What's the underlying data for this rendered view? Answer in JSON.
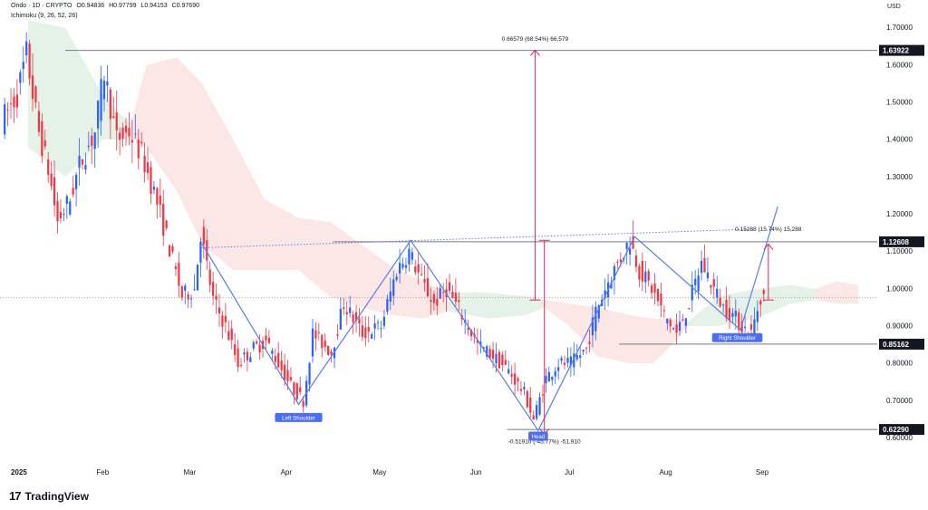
{
  "header": {
    "symbol": "Ondo · 1D · CRYPTO",
    "o_label": "O",
    "o": "0.94836",
    "h_label": "H",
    "h": "0.97799",
    "l_label": "L",
    "l": "0.94153",
    "c_label": "C",
    "c": "0.97690",
    "indicator": "Ichimoku (9, 26, 52, 26)"
  },
  "currency": "USD",
  "brand": "TradingView",
  "colors": {
    "up": "#2962ff",
    "down": "#f23645",
    "pattern": "#5b7cf0",
    "cloud_bear": "#fbe3e3",
    "cloud_bull": "#e1f0e4",
    "measure": "#e0245e"
  },
  "chart_data": {
    "type": "candlestick",
    "title": "Ondo · 1D · CRYPTO",
    "y_axis": {
      "ylim": [
        0.56,
        1.75
      ],
      "ticks": [
        0.6,
        0.7,
        0.8,
        0.9,
        1.0,
        1.1,
        1.2,
        1.3,
        1.4,
        1.5,
        1.6,
        1.7
      ],
      "tick_labels": [
        "0.60000",
        "0.70000",
        "0.80000",
        "0.90000",
        "1.00000",
        "1.10000",
        "1.20000",
        "1.30000",
        "1.40000",
        "1.50000",
        "1.60000",
        "1.70000"
      ],
      "label": "USD"
    },
    "x_axis": {
      "labels": [
        "2025",
        "Feb",
        "Mar",
        "Apr",
        "May",
        "Jun",
        "Jul",
        "Aug",
        "Sep"
      ],
      "label_dates": [
        "2025-01-01",
        "2025-02-01",
        "2025-03-01",
        "2025-04-01",
        "2025-05-01",
        "2025-06-01",
        "2025-07-01",
        "2025-08-01",
        "2025-09-01"
      ],
      "range": [
        "2024-12-30",
        "2025-10-08"
      ]
    },
    "price_levels": [
      {
        "label": "1.63922",
        "value": 1.63922,
        "from": "2025-01-20"
      },
      {
        "label": "1.12608",
        "value": 1.12608,
        "from": "2025-04-16"
      },
      {
        "label": "0.85162",
        "value": 0.85162,
        "from": "2025-07-17"
      },
      {
        "label": "0.62290",
        "value": 0.6229,
        "from": "2025-06-11"
      }
    ],
    "current_price": 0.9769,
    "price_path": [
      [
        "2024-12-31",
        1.45
      ],
      [
        "2025-01-05",
        1.52
      ],
      [
        "2025-01-08",
        1.63
      ],
      [
        "2025-01-12",
        1.42
      ],
      [
        "2025-01-15",
        1.32
      ],
      [
        "2025-01-18",
        1.18
      ],
      [
        "2025-01-22",
        1.24
      ],
      [
        "2025-01-25",
        1.33
      ],
      [
        "2025-01-30",
        1.42
      ],
      [
        "2025-02-02",
        1.58
      ],
      [
        "2025-02-06",
        1.4
      ],
      [
        "2025-02-10",
        1.42
      ],
      [
        "2025-02-14",
        1.36
      ],
      [
        "2025-02-18",
        1.26
      ],
      [
        "2025-02-22",
        1.14
      ],
      [
        "2025-02-27",
        0.98
      ],
      [
        "2025-03-03",
        1.0
      ],
      [
        "2025-03-05",
        1.15
      ],
      [
        "2025-03-09",
        0.97
      ],
      [
        "2025-03-13",
        0.9
      ],
      [
        "2025-03-17",
        0.8
      ],
      [
        "2025-03-22",
        0.84
      ],
      [
        "2025-03-26",
        0.86
      ],
      [
        "2025-03-30",
        0.8
      ],
      [
        "2025-04-03",
        0.74
      ],
      [
        "2025-04-07",
        0.7
      ],
      [
        "2025-04-10",
        0.88
      ],
      [
        "2025-04-16",
        0.83
      ],
      [
        "2025-04-20",
        0.96
      ],
      [
        "2025-04-26",
        0.88
      ],
      [
        "2025-05-02",
        0.9
      ],
      [
        "2025-05-07",
        1.05
      ],
      [
        "2025-05-11",
        1.1
      ],
      [
        "2025-05-15",
        1.02
      ],
      [
        "2025-05-19",
        0.96
      ],
      [
        "2025-05-23",
        1.0
      ],
      [
        "2025-05-28",
        0.93
      ],
      [
        "2025-06-02",
        0.85
      ],
      [
        "2025-06-07",
        0.82
      ],
      [
        "2025-06-12",
        0.78
      ],
      [
        "2025-06-17",
        0.72
      ],
      [
        "2025-06-20",
        0.65
      ],
      [
        "2025-06-24",
        0.76
      ],
      [
        "2025-06-28",
        0.8
      ],
      [
        "2025-07-02",
        0.8
      ],
      [
        "2025-07-07",
        0.84
      ],
      [
        "2025-07-10",
        0.94
      ],
      [
        "2025-07-14",
        1.02
      ],
      [
        "2025-07-19",
        1.1
      ],
      [
        "2025-07-21",
        1.13
      ],
      [
        "2025-07-24",
        1.05
      ],
      [
        "2025-07-28",
        1.0
      ],
      [
        "2025-08-01",
        0.93
      ],
      [
        "2025-08-05",
        0.88
      ],
      [
        "2025-08-09",
        0.96
      ],
      [
        "2025-08-13",
        1.07
      ],
      [
        "2025-08-17",
        1.0
      ],
      [
        "2025-08-20",
        0.95
      ],
      [
        "2025-08-23",
        0.93
      ],
      [
        "2025-08-26",
        0.9
      ],
      [
        "2025-08-29",
        0.88
      ],
      [
        "2025-09-01",
        0.98
      ]
    ],
    "cloud": [
      {
        "color": "bull",
        "points": [
          [
            "2025-01-08",
            1.72,
            1.38
          ],
          [
            "2025-01-20",
            1.7,
            1.3
          ],
          [
            "2025-02-01",
            1.52,
            1.4
          ],
          [
            "2025-02-10",
            1.44,
            1.4
          ]
        ]
      },
      {
        "color": "bear",
        "points": [
          [
            "2025-02-10",
            1.44,
            1.4
          ],
          [
            "2025-02-15",
            1.6,
            1.38
          ],
          [
            "2025-02-25",
            1.62,
            1.26
          ],
          [
            "2025-03-05",
            1.55,
            1.12
          ],
          [
            "2025-03-15",
            1.4,
            1.05
          ],
          [
            "2025-03-25",
            1.24,
            1.05
          ],
          [
            "2025-04-05",
            1.19,
            1.05
          ],
          [
            "2025-04-15",
            1.18,
            0.98
          ],
          [
            "2025-04-25",
            1.12,
            0.95
          ],
          [
            "2025-05-05",
            1.06,
            0.93
          ],
          [
            "2025-05-15",
            1.02,
            0.92
          ],
          [
            "2025-05-23",
            0.99,
            0.94
          ]
        ]
      },
      {
        "color": "bull",
        "points": [
          [
            "2025-05-23",
            0.99,
            0.94
          ],
          [
            "2025-06-05",
            0.99,
            0.92
          ],
          [
            "2025-06-17",
            0.98,
            0.93
          ],
          [
            "2025-06-23",
            0.97,
            0.95
          ]
        ]
      },
      {
        "color": "bear",
        "points": [
          [
            "2025-06-23",
            0.97,
            0.95
          ],
          [
            "2025-07-01",
            0.96,
            0.9
          ],
          [
            "2025-07-10",
            0.95,
            0.82
          ],
          [
            "2025-07-20",
            0.93,
            0.8
          ],
          [
            "2025-07-28",
            0.92,
            0.8
          ],
          [
            "2025-08-03",
            0.92,
            0.85
          ],
          [
            "2025-08-08",
            0.91,
            0.9
          ]
        ]
      },
      {
        "color": "bull",
        "points": [
          [
            "2025-08-08",
            0.91,
            0.9
          ],
          [
            "2025-08-18",
            0.98,
            0.9
          ],
          [
            "2025-08-30",
            1.0,
            0.92
          ],
          [
            "2025-09-10",
            1.01,
            0.96
          ],
          [
            "2025-09-18",
            1.0,
            0.97
          ]
        ]
      },
      {
        "color": "bear",
        "points": [
          [
            "2025-09-18",
            1.0,
            0.97
          ],
          [
            "2025-09-25",
            1.02,
            0.96
          ],
          [
            "2025-10-02",
            1.01,
            0.96
          ]
        ]
      }
    ],
    "pattern_line": [
      [
        "2025-03-05",
        1.12
      ],
      [
        "2025-04-05",
        0.69
      ],
      [
        "2025-05-11",
        1.13
      ],
      [
        "2025-06-21",
        0.62
      ],
      [
        "2025-07-22",
        1.14
      ],
      [
        "2025-08-25",
        0.89
      ],
      [
        "2025-09-06",
        1.22
      ]
    ],
    "neckline": [
      [
        "2025-03-05",
        1.11
      ],
      [
        "2025-08-29",
        1.16
      ]
    ],
    "annotations": [
      {
        "text": "Left Shoulder",
        "date": "2025-04-05",
        "value": 0.655
      },
      {
        "text": "Head",
        "date": "2025-06-21",
        "value": 0.605
      },
      {
        "text": "Right Shoulder",
        "date": "2025-08-24",
        "value": 0.869
      }
    ],
    "measurements": [
      {
        "text": "0.66579 (68.54%) 66,579",
        "date": "2025-06-20",
        "from": 0.97,
        "to": 1.64,
        "label_value": 1.665
      },
      {
        "text": "-0.51910 (-45.77%) -51,910",
        "date": "2025-06-23",
        "from": 1.13,
        "to": 0.61,
        "label_value": 0.585
      },
      {
        "text": "0.15288 (15.74%) 15,288",
        "date": "2025-09-03",
        "from": 0.97,
        "to": 1.12,
        "label_value": 1.155
      }
    ]
  }
}
